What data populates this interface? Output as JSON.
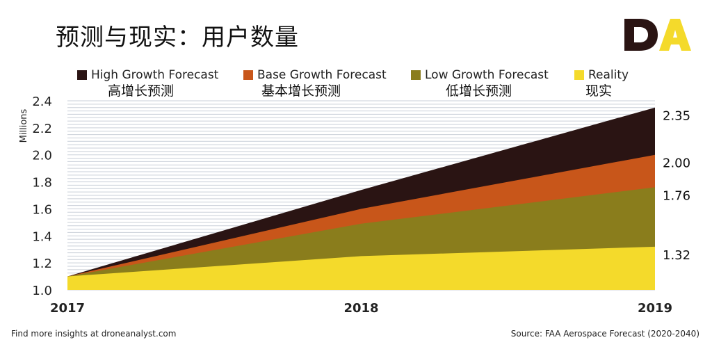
{
  "page": {
    "title": "预测与现实：用户数量",
    "logo_text_d": "D",
    "logo_text_a": "A",
    "footer_left": "Find more insights at droneanalyst.com",
    "footer_right": "Source: FAA Aerospace Forecast (2020-2040)"
  },
  "colors": {
    "high": "#2a1413",
    "base": "#c8561a",
    "low": "#8a7d1c",
    "reality": "#f4da2b",
    "grid": "#c9cfd8",
    "logo_dark": "#2a1413",
    "logo_accent": "#f4da2b"
  },
  "legend": [
    {
      "key": "high",
      "label": "High Growth Forecast",
      "sublabel": "高增长预测",
      "icon": "square-swatch-icon"
    },
    {
      "key": "base",
      "label": "Base Growth Forecast",
      "sublabel": "基本增长预测",
      "icon": "square-swatch-icon"
    },
    {
      "key": "low",
      "label": "Low Growth Forecast",
      "sublabel": "低增长预测",
      "icon": "square-swatch-icon"
    },
    {
      "key": "reality",
      "label": "Reality",
      "sublabel": "现实",
      "icon": "square-swatch-icon"
    }
  ],
  "chart_data": {
    "type": "area",
    "title": "预测与现实：用户数量",
    "ylabel": "Millions",
    "xlabel": "",
    "x": [
      "2017",
      "2018",
      "2019"
    ],
    "ylim": [
      1.0,
      2.4
    ],
    "yticks": [
      "1.0",
      "1.2",
      "1.4",
      "1.6",
      "1.8",
      "2.0",
      "2.2",
      "2.4"
    ],
    "grid": true,
    "series": [
      {
        "name": "High Growth Forecast",
        "key": "high",
        "values": [
          1.1,
          1.74,
          2.35
        ]
      },
      {
        "name": "Base Growth Forecast",
        "key": "base",
        "values": [
          1.1,
          1.6,
          2.0
        ]
      },
      {
        "name": "Low Growth Forecast",
        "key": "low",
        "values": [
          1.1,
          1.49,
          1.76
        ]
      },
      {
        "name": "Reality",
        "key": "reality",
        "values": [
          1.1,
          1.25,
          1.32
        ]
      }
    ],
    "end_labels": [
      "2.35",
      "2.00",
      "1.76",
      "1.32"
    ]
  }
}
